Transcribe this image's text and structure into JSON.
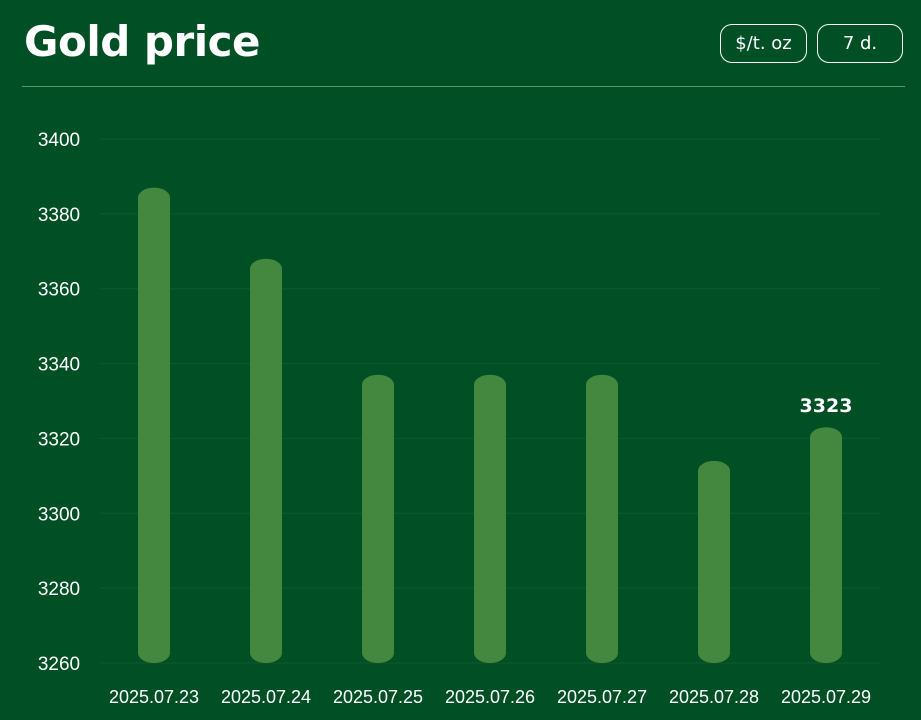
{
  "header": {
    "title": "Gold price",
    "unit_label": "$/t. oz",
    "range_label": "7 d."
  },
  "colors": {
    "background": "#014f24",
    "bar": "#44873f",
    "text": "#ffffff"
  },
  "chart_data": {
    "type": "bar",
    "title": "Gold price",
    "xlabel": "",
    "ylabel": "",
    "categories": [
      "2025.07.23",
      "2025.07.24",
      "2025.07.25",
      "2025.07.26",
      "2025.07.27",
      "2025.07.28",
      "2025.07.29"
    ],
    "values": [
      3387,
      3368,
      3337,
      3337,
      3337,
      3314,
      3323
    ],
    "ylim": [
      3260,
      3400
    ],
    "yticks": [
      3260,
      3280,
      3300,
      3320,
      3340,
      3360,
      3380,
      3400
    ],
    "data_labels": [
      {
        "category": "2025.07.29",
        "text": "3323"
      }
    ],
    "grid": true,
    "legend": "none"
  }
}
